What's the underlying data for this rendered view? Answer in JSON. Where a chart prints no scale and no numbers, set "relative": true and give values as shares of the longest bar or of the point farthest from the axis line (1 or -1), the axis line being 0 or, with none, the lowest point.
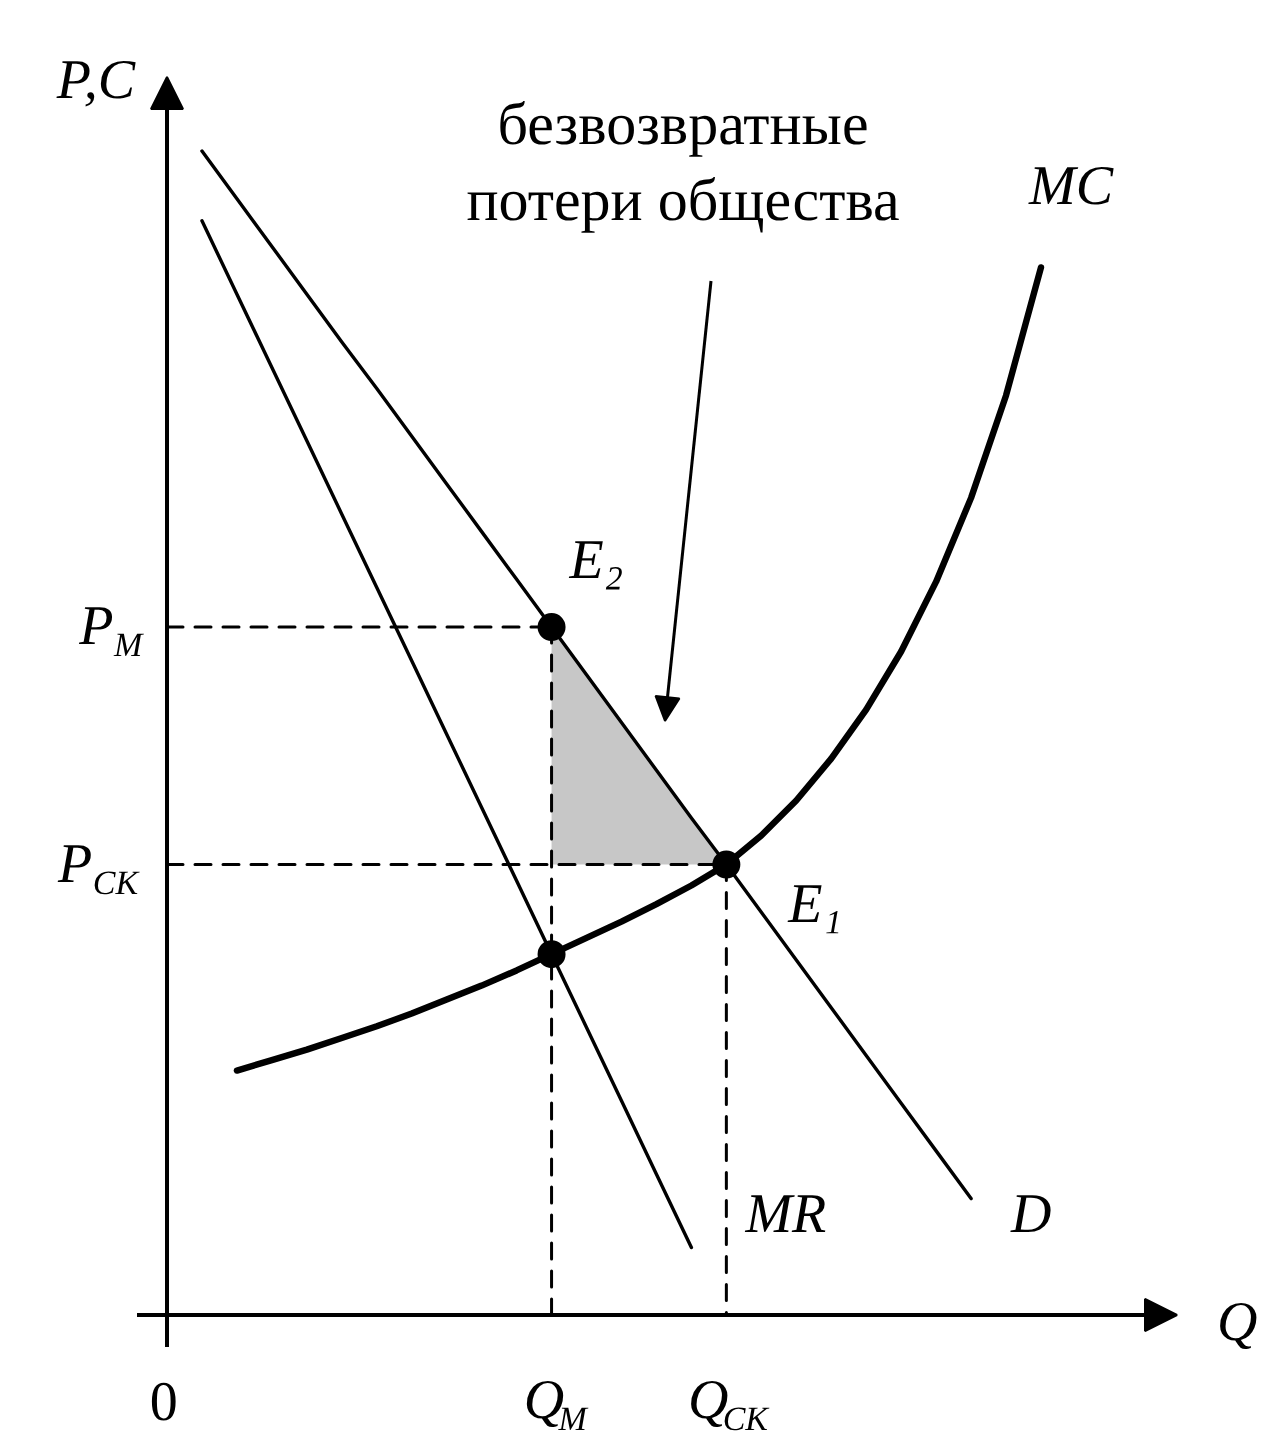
{
  "chart_data": {
    "type": "line",
    "relative": true,
    "xlabel": "Q",
    "ylabel": "P,C",
    "categories": [
      "0",
      null,
      null,
      null,
      null,
      null,
      null,
      null,
      null,
      null,
      null,
      "Q$_{M}$",
      null,
      null,
      null,
      null,
      "Q$_{CK}$",
      null,
      null,
      null,
      null,
      null,
      null,
      null,
      null,
      null
    ],
    "annotations": [
      {
        "text": "E₂",
        "x": "Q$_{M}$",
        "y": 0.591
      },
      {
        "text": "E₁",
        "x": "Q$_{CK}$",
        "y": 0.387
      },
      "безвозвратные\nпотери общества",
      {
        "text": "P$_{M}$",
        "x": "0",
        "y": 0.591
      },
      {
        "text": "P$_{CK}$",
        "x": "0",
        "y": 0.387
      }
    ],
    "series": [
      {
        "name": "D",
        "color": "#000000",
        "values": [
          null,
          1.0,
          0.959,
          0.918,
          0.877,
          0.836,
          0.796,
          0.755,
          0.714,
          0.673,
          0.632,
          0.591,
          0.55,
          0.509,
          0.468,
          0.427,
          0.387,
          0.346,
          0.305,
          0.264,
          0.223,
          0.182,
          0.141,
          0.1,
          null,
          null
        ],
        "upper": [
          null,
          null,
          null,
          null,
          null,
          null,
          null,
          null,
          null,
          null,
          null,
          0.591,
          0.55,
          0.509,
          0.468,
          0.427,
          0.387,
          null,
          null,
          null,
          null,
          null,
          null,
          null,
          null,
          null
        ],
        "lower": [
          null,
          null,
          null,
          null,
          null,
          null,
          null,
          null,
          null,
          null,
          null,
          0.387,
          0.387,
          0.387,
          0.387,
          0.387,
          0.387,
          null,
          null,
          null,
          null,
          null,
          null,
          null,
          null,
          null
        ]
      },
      {
        "name": "MR",
        "color": "#000000",
        "values": [
          null,
          0.94,
          0.877,
          0.814,
          0.751,
          0.688,
          0.625,
          0.562,
          0.499,
          0.436,
          0.373,
          0.31,
          0.247,
          0.184,
          0.121,
          0.058,
          null,
          null,
          null,
          null,
          null,
          null,
          null,
          null,
          null,
          null
        ]
      },
      {
        "name": "MC",
        "color": "#000000",
        "values": [
          null,
          null,
          0.21,
          0.219,
          0.228,
          0.238,
          0.248,
          0.259,
          0.271,
          0.283,
          0.296,
          0.31,
          0.324,
          0.338,
          0.353,
          0.369,
          0.387,
          0.412,
          0.442,
          0.478,
          0.52,
          0.57,
          0.63,
          0.702,
          0.79,
          0.9
        ]
      },
      {
        "line_style": "dashed",
        "color": "#000000",
        "x": [
          "0",
          "Q$_{M}$"
        ],
        "values": [
          0.591,
          0.591
        ]
      },
      {
        "line_style": "dashed",
        "color": "#000000",
        "x": [
          "Q$_{M}$",
          "Q$_{M}$"
        ],
        "values": [
          0.591,
          0
        ]
      },
      {
        "line_style": "dashed",
        "color": "#000000",
        "x": [
          "0",
          "Q$_{CK}$"
        ],
        "values": [
          0.387,
          0.387
        ]
      },
      {
        "line_style": "dashed",
        "color": "#000000",
        "x": [
          "Q$_{CK}$",
          "Q$_{CK}$"
        ],
        "values": [
          0.387,
          0
        ]
      },
      {
        "type": "scatter",
        "marker": "circle",
        "color": "#000000",
        "x": [
          "Q$_{M}$",
          "Q$_{CK}$",
          "Q$_{M}$"
        ],
        "values": [
          0.591,
          0.387,
          0.31
        ]
      }
    ]
  }
}
